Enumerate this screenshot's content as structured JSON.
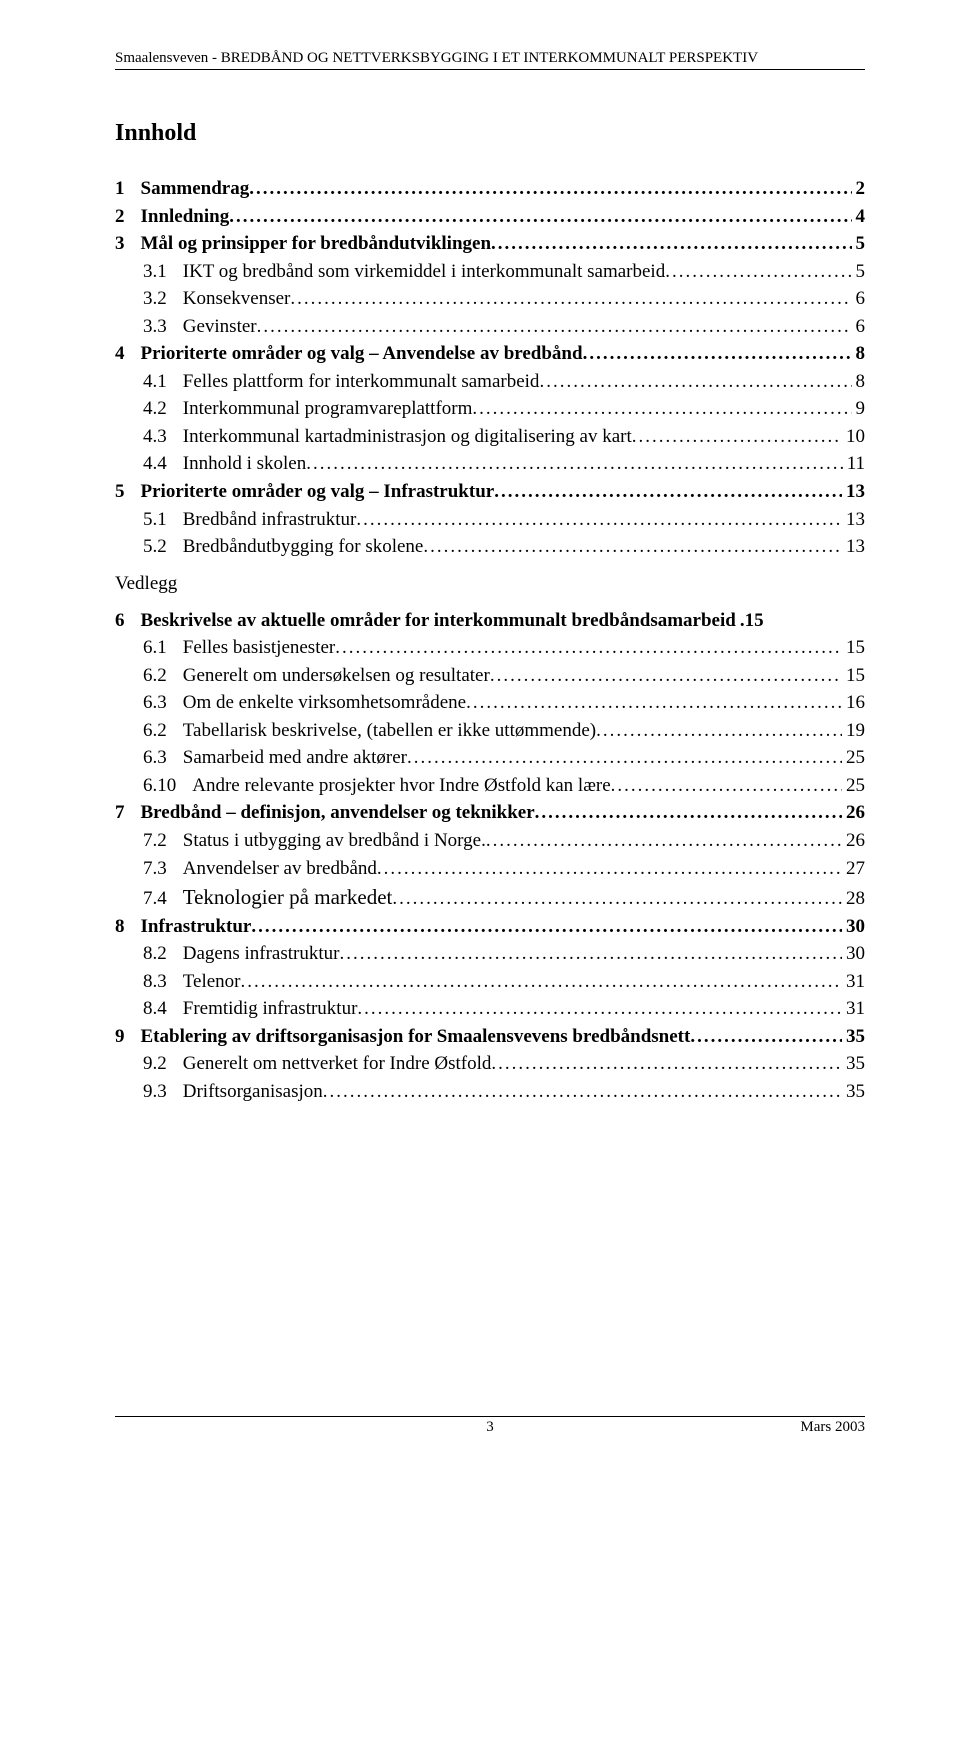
{
  "header": "Smaalensveven - BREDBÅND OG NETTVERKSBYGGING I ET INTERKOMMUNALT PERSPEKTIV",
  "title": "Innhold",
  "vedlegg": "Vedlegg",
  "toc": [
    {
      "num": "1",
      "text": "Sammendrag",
      "page": "2",
      "bold": true,
      "indent": 0
    },
    {
      "num": "2",
      "text": "Innledning",
      "page": "4",
      "bold": true,
      "indent": 0
    },
    {
      "num": "3",
      "text": "Mål og prinsipper for bredbåndutviklingen",
      "page": "5",
      "bold": true,
      "indent": 0
    },
    {
      "num": "3.1",
      "text": "IKT og bredbånd som virkemiddel i interkommunalt samarbeid",
      "page": "5",
      "bold": false,
      "indent": 1
    },
    {
      "num": "3.2",
      "text": "Konsekvenser",
      "page": "6",
      "bold": false,
      "indent": 1
    },
    {
      "num": "3.3",
      "text": "Gevinster",
      "page": "6",
      "bold": false,
      "indent": 1
    },
    {
      "num": "4",
      "text": "Prioriterte områder og valg – Anvendelse av bredbånd",
      "page": "8",
      "bold": true,
      "indent": 0
    },
    {
      "num": "4.1",
      "text": "Felles plattform for interkommunalt samarbeid",
      "page": "8",
      "bold": false,
      "indent": 1
    },
    {
      "num": "4.2",
      "text": "Interkommunal programvareplattform",
      "page": "9",
      "bold": false,
      "indent": 1
    },
    {
      "num": "4.3",
      "text": "Interkommunal kartadministrasjon og digitalisering av kart",
      "page": "10",
      "bold": false,
      "indent": 1
    },
    {
      "num": "4.4",
      "text": "Innhold i skolen",
      "page": "11",
      "bold": false,
      "indent": 1
    },
    {
      "num": "5",
      "text": "Prioriterte områder og valg – Infrastruktur",
      "page": "13",
      "bold": true,
      "indent": 0
    },
    {
      "num": "5.1",
      "text": "Bredbånd infrastruktur",
      "page": "13",
      "bold": false,
      "indent": 1
    },
    {
      "num": "5.2",
      "text": "Bredbåndutbygging for skolene",
      "page": "13",
      "bold": false,
      "indent": 1
    }
  ],
  "toc2": [
    {
      "num": "6",
      "text": "Beskrivelse av aktuelle områder for interkommunalt bredbåndsamarbeid",
      "page": ".15",
      "bold": true,
      "indent": 0,
      "nodots": true
    },
    {
      "num": "6.1",
      "text": "Felles basistjenester",
      "page": "15",
      "bold": false,
      "indent": 1
    },
    {
      "num": "6.2",
      "text": "Generelt om undersøkelsen og resultater",
      "page": "15",
      "bold": false,
      "indent": 1
    },
    {
      "num": "6.3",
      "text": "Om de enkelte virksomhetsområdene",
      "page": "16",
      "bold": false,
      "indent": 1
    },
    {
      "num": "6.2",
      "text": "Tabellarisk beskrivelse, (tabellen er ikke uttømmende)",
      "page": "19",
      "bold": false,
      "indent": 1
    },
    {
      "num": "6.3",
      "text": "Samarbeid med andre aktører",
      "page": "25",
      "bold": false,
      "indent": 1
    },
    {
      "num": "6.10",
      "text": "Andre relevante prosjekter hvor Indre Østfold kan lære",
      "page": "25",
      "bold": false,
      "indent": 1
    },
    {
      "num": "7",
      "text": "Bredbånd – definisjon, anvendelser og teknikker",
      "page": "26",
      "bold": true,
      "indent": 0
    },
    {
      "num": "7.2",
      "text": "Status i utbygging av bredbånd i Norge. ",
      "page": "26",
      "bold": false,
      "indent": 1
    },
    {
      "num": "7.3",
      "text": "Anvendelser av bredbånd",
      "page": "27",
      "bold": false,
      "indent": 1
    },
    {
      "num": "7.4",
      "text": "Teknologier på markedet",
      "page": "28",
      "bold": false,
      "indent": 1,
      "sec74": true
    },
    {
      "num": "8",
      "text": "Infrastruktur",
      "page": "30",
      "bold": true,
      "indent": 0
    },
    {
      "num": "8.2",
      "text": "Dagens infrastruktur",
      "page": "30",
      "bold": false,
      "indent": 1
    },
    {
      "num": "8.3",
      "text": "Telenor",
      "page": "31",
      "bold": false,
      "indent": 1
    },
    {
      "num": "8.4",
      "text": "Fremtidig infrastruktur",
      "page": "31",
      "bold": false,
      "indent": 1
    },
    {
      "num": "9",
      "text": "Etablering av driftsorganisasjon for Smaalensvevens bredbåndsnett",
      "page": "35",
      "bold": true,
      "indent": 0
    },
    {
      "num": "9.2",
      "text": "Generelt om nettverket for Indre Østfold",
      "page": "35",
      "bold": false,
      "indent": 1
    },
    {
      "num": "9.3",
      "text": "Driftsorganisasjon",
      "page": "35",
      "bold": false,
      "indent": 1
    }
  ],
  "footer": {
    "pagenum": "3",
    "date": "Mars 2003"
  }
}
